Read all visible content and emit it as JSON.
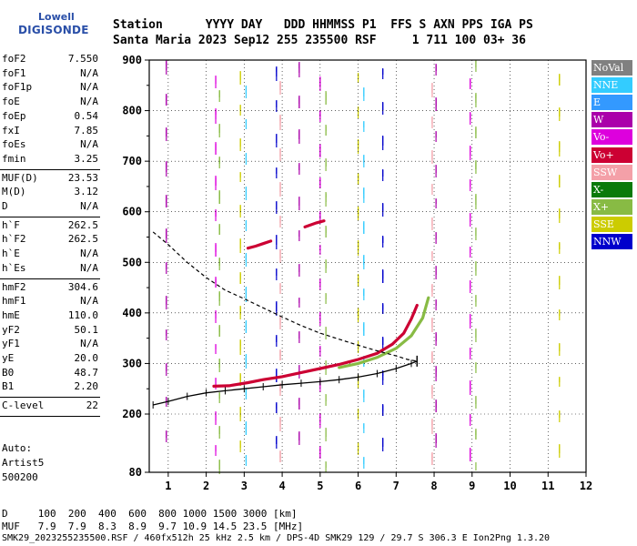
{
  "logo": {
    "top": "Lowell",
    "bottom": "DIGISONDE"
  },
  "header": {
    "line1": "Station      YYYY DAY   DDD HHMMSS P1  FFS S AXN PPS IGA PS",
    "line2": "Santa Maria 2023 Sep12 255 235500 RSF     1 711 100 03+ 36"
  },
  "params": [
    {
      "k": "foF2",
      "v": "7.550"
    },
    {
      "k": "foF1",
      "v": "N/A"
    },
    {
      "k": "foF1p",
      "v": "N/A"
    },
    {
      "k": "foE",
      "v": "N/A"
    },
    {
      "k": "foEp",
      "v": "0.54"
    },
    {
      "k": "fxI",
      "v": "7.85"
    },
    {
      "k": "foEs",
      "v": "N/A"
    },
    {
      "k": "fmin",
      "v": "3.25"
    },
    {
      "k": "MUF(D)",
      "v": "23.53"
    },
    {
      "k": "M(D)",
      "v": "3.12"
    },
    {
      "k": "D",
      "v": "N/A"
    },
    {
      "k": "h`F",
      "v": "262.5"
    },
    {
      "k": "h`F2",
      "v": "262.5"
    },
    {
      "k": "h`E",
      "v": "N/A"
    },
    {
      "k": "h`Es",
      "v": "N/A"
    },
    {
      "k": "hmF2",
      "v": "304.6"
    },
    {
      "k": "hmF1",
      "v": "N/A"
    },
    {
      "k": "hmE",
      "v": "110.0"
    },
    {
      "k": "yF2",
      "v": "50.1"
    },
    {
      "k": "yF1",
      "v": "N/A"
    },
    {
      "k": "yE",
      "v": "20.0"
    },
    {
      "k": "B0",
      "v": "48.7"
    },
    {
      "k": "B1",
      "v": "2.20"
    },
    {
      "k": "C-level",
      "v": "22"
    }
  ],
  "auto": [
    "Auto:",
    "Artist5",
    "500200"
  ],
  "legend": [
    {
      "label": "NoVal",
      "color": "#808080"
    },
    {
      "label": "NNE",
      "color": "#33ccff"
    },
    {
      "label": "E",
      "color": "#3399ff"
    },
    {
      "label": "W",
      "color": "#aa00aa"
    },
    {
      "label": "Vo-",
      "color": "#dd00dd"
    },
    {
      "label": "Vo+",
      "color": "#cc0033"
    },
    {
      "label": "SSW",
      "color": "#f4a0a8"
    },
    {
      "label": "X-",
      "color": "#0a7a0a"
    },
    {
      "label": "X+",
      "color": "#88bb44"
    },
    {
      "label": "SSE",
      "color": "#cccc00"
    },
    {
      "label": "NNW",
      "color": "#0000cc"
    }
  ],
  "bottom": {
    "d_row": "D     100  200  400  600  800 1000 1500 3000 [km]",
    "muf_row": "MUF   7.9  7.9  8.3  8.9  9.7 10.9 14.5 23.5 [MHz]",
    "footer": "SMK29_2023255235500.RSF / 460fx512h 25 kHz 2.5 km / DPS-4D SMK29 129 / 29.7 S 306.3 E Ion2Png 1.3.20"
  },
  "chart_data": {
    "type": "scatter",
    "x_ticks": [
      1,
      2,
      3,
      4,
      5,
      6,
      7,
      8,
      9,
      10,
      11,
      12
    ],
    "y_ticks": [
      80,
      200,
      300,
      400,
      500,
      600,
      700,
      800,
      900
    ],
    "xlim": [
      0.5,
      12
    ],
    "ylim": [
      80,
      900
    ],
    "grid": "dotted",
    "series": [
      {
        "role": "trace",
        "color": "#cc0033",
        "points": [
          [
            2.2,
            255
          ],
          [
            2.6,
            256
          ],
          [
            3.1,
            262
          ],
          [
            3.5,
            268
          ],
          [
            4.0,
            274
          ],
          [
            4.5,
            282
          ],
          [
            5.0,
            290
          ],
          [
            5.5,
            298
          ],
          [
            6.0,
            308
          ],
          [
            6.5,
            320
          ],
          [
            6.9,
            338
          ],
          [
            7.2,
            360
          ],
          [
            7.4,
            388
          ],
          [
            7.55,
            415
          ]
        ]
      },
      {
        "role": "trace",
        "color": "#88bb44",
        "points": [
          [
            5.5,
            292
          ],
          [
            6.0,
            300
          ],
          [
            6.5,
            312
          ],
          [
            7.0,
            330
          ],
          [
            7.4,
            355
          ],
          [
            7.7,
            390
          ],
          [
            7.85,
            430
          ]
        ]
      },
      {
        "role": "profile",
        "color": "#000000",
        "points": [
          [
            0.6,
            218
          ],
          [
            1.0,
            225
          ],
          [
            1.5,
            235
          ],
          [
            2.0,
            242
          ],
          [
            2.5,
            246
          ],
          [
            3.0,
            250
          ],
          [
            3.5,
            254
          ],
          [
            4.0,
            258
          ],
          [
            4.5,
            261
          ],
          [
            5.0,
            264
          ],
          [
            5.5,
            268
          ],
          [
            6.0,
            273
          ],
          [
            6.5,
            280
          ],
          [
            7.0,
            290
          ],
          [
            7.4,
            300
          ],
          [
            7.55,
            304.6
          ]
        ]
      },
      {
        "role": "density",
        "color": "#000000",
        "points": [
          [
            0.6,
            560
          ],
          [
            1.0,
            535
          ],
          [
            1.5,
            500
          ],
          [
            2.0,
            470
          ],
          [
            2.5,
            445
          ],
          [
            3.0,
            428
          ],
          [
            3.5,
            410
          ],
          [
            4.0,
            392
          ],
          [
            4.5,
            375
          ],
          [
            5.0,
            360
          ],
          [
            5.5,
            348
          ],
          [
            6.0,
            336
          ],
          [
            6.5,
            325
          ],
          [
            7.0,
            315
          ],
          [
            7.3,
            308
          ],
          [
            7.55,
            304.6
          ]
        ]
      },
      {
        "role": "trace",
        "color": "#cc0033",
        "points": [
          [
            3.1,
            528
          ],
          [
            3.3,
            532
          ],
          [
            3.5,
            537
          ],
          [
            3.7,
            542
          ]
        ]
      },
      {
        "role": "trace",
        "color": "#cc0033",
        "points": [
          [
            4.6,
            570
          ],
          [
            4.9,
            578
          ],
          [
            5.1,
            582
          ]
        ]
      }
    ],
    "interference_columns": [
      0.95,
      2.25,
      2.35,
      2.9,
      3.05,
      3.85,
      3.95,
      4.45,
      5.0,
      5.15,
      6.0,
      6.15,
      6.65,
      7.95,
      8.05,
      8.95,
      9.1,
      11.3
    ]
  }
}
